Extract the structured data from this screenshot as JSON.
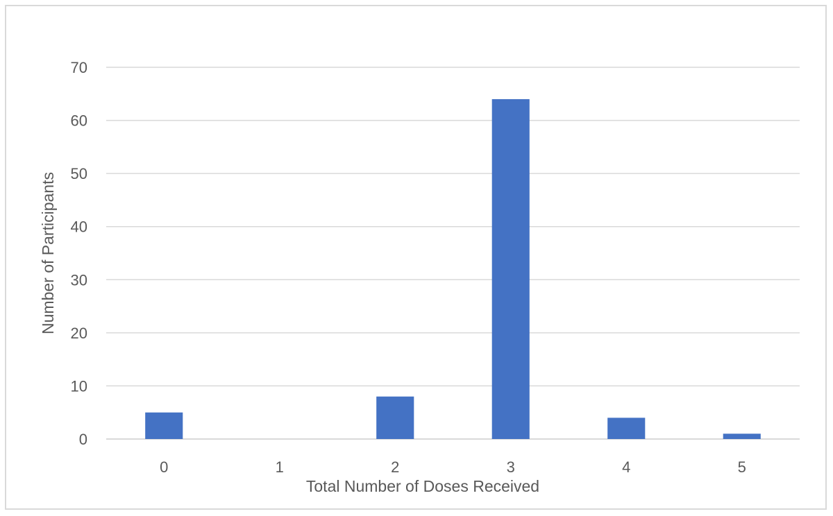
{
  "chart_data": {
    "type": "bar",
    "title": "",
    "xlabel": "Total Number of Doses Received",
    "ylabel": "Number of Participants",
    "categories": [
      "0",
      "1",
      "2",
      "3",
      "4",
      "5"
    ],
    "values": [
      5,
      0,
      8,
      64,
      4,
      1
    ],
    "ylim": [
      0,
      70
    ],
    "yticks": [
      "0",
      "10",
      "20",
      "30",
      "40",
      "50",
      "60",
      "70"
    ],
    "grid": true,
    "legend": "none",
    "bar_color": "#4472c4",
    "grid_color": "#d9d9d9",
    "text_color": "#595959"
  }
}
